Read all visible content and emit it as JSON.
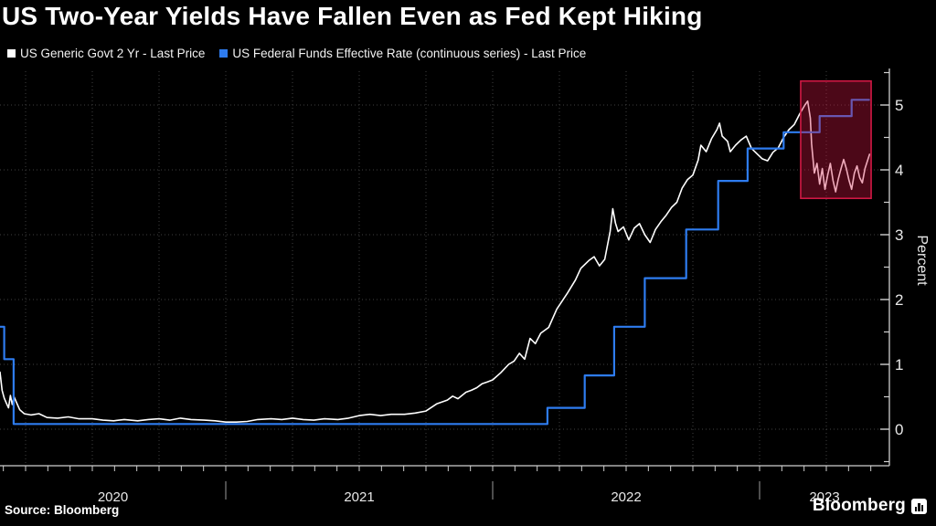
{
  "title": "US Two-Year Yields Have Fallen Even as Fed Kept Hiking",
  "legend": [
    {
      "label": "US Generic Govt 2 Yr - Last Price",
      "color": "#ffffff"
    },
    {
      "label": "US Federal Funds Effective Rate (continuous series) - Last Price",
      "color": "#2e7cf0"
    }
  ],
  "source_label": "Source: Bloomberg",
  "brand": {
    "name": "Bloomberg",
    "icon": "bloomberg-mark-icon"
  },
  "colors": {
    "background": "#000000",
    "grid": "#3f3f3f",
    "axis": "#cfcfcf",
    "tick_label": "#e8e8e8",
    "series_2yr": "#ffffff",
    "series_fedfunds": "#2e7cf0",
    "highlight_fill": "rgba(210,22,66,0.36)",
    "highlight_border": "#d01844"
  },
  "chart_data": {
    "type": "line",
    "x_unit": "decimal_year",
    "x_domain": [
      2020.154,
      2023.486
    ],
    "y_axis": {
      "label": "Percent",
      "side": "right",
      "ticks": [
        0,
        1,
        2,
        3,
        4,
        5
      ],
      "minor_step": 0.5,
      "range": [
        -0.56,
        5.56
      ]
    },
    "x_axis": {
      "year_labels": [
        "2020",
        "2021",
        "2022",
        "2023"
      ],
      "year_boundaries": [
        2020.154,
        2021,
        2022,
        2023,
        2023.486
      ],
      "minor_ticks": "monthly",
      "gridlines": "quarterly-dotted"
    },
    "grid": {
      "horizontal": [
        0,
        1,
        2,
        3,
        4,
        5
      ],
      "vertical_quarters_from": 2020.25,
      "vertical_quarters_to": 2023.25
    },
    "highlight_box": {
      "x1": 2023.154,
      "x2": 2023.418,
      "y1": 3.56,
      "y2": 5.37
    },
    "series": [
      {
        "name": "US Generic Govt 2 Yr - Last Price",
        "color": "#ffffff",
        "style": "line",
        "points": [
          [
            2020.154,
            0.88
          ],
          [
            2020.162,
            0.6
          ],
          [
            2020.17,
            0.48
          ],
          [
            2020.178,
            0.4
          ],
          [
            2020.186,
            0.33
          ],
          [
            2020.193,
            0.52
          ],
          [
            2020.2,
            0.38
          ],
          [
            2020.207,
            0.5
          ],
          [
            2020.215,
            0.42
          ],
          [
            2020.228,
            0.3
          ],
          [
            2020.245,
            0.24
          ],
          [
            2020.27,
            0.22
          ],
          [
            2020.3,
            0.24
          ],
          [
            2020.33,
            0.18
          ],
          [
            2020.37,
            0.17
          ],
          [
            2020.41,
            0.19
          ],
          [
            2020.45,
            0.16
          ],
          [
            2020.5,
            0.16
          ],
          [
            2020.54,
            0.14
          ],
          [
            2020.58,
            0.13
          ],
          [
            2020.62,
            0.15
          ],
          [
            2020.67,
            0.13
          ],
          [
            2020.71,
            0.15
          ],
          [
            2020.75,
            0.16
          ],
          [
            2020.79,
            0.14
          ],
          [
            2020.83,
            0.17
          ],
          [
            2020.87,
            0.15
          ],
          [
            2020.92,
            0.14
          ],
          [
            2020.96,
            0.13
          ],
          [
            2021.0,
            0.11
          ],
          [
            2021.04,
            0.11
          ],
          [
            2021.08,
            0.12
          ],
          [
            2021.12,
            0.15
          ],
          [
            2021.17,
            0.16
          ],
          [
            2021.21,
            0.15
          ],
          [
            2021.25,
            0.17
          ],
          [
            2021.29,
            0.15
          ],
          [
            2021.33,
            0.14
          ],
          [
            2021.37,
            0.16
          ],
          [
            2021.42,
            0.15
          ],
          [
            2021.46,
            0.17
          ],
          [
            2021.5,
            0.21
          ],
          [
            2021.54,
            0.23
          ],
          [
            2021.58,
            0.21
          ],
          [
            2021.62,
            0.23
          ],
          [
            2021.67,
            0.23
          ],
          [
            2021.71,
            0.25
          ],
          [
            2021.75,
            0.28
          ],
          [
            2021.79,
            0.39
          ],
          [
            2021.83,
            0.45
          ],
          [
            2021.85,
            0.51
          ],
          [
            2021.87,
            0.47
          ],
          [
            2021.9,
            0.57
          ],
          [
            2021.92,
            0.6
          ],
          [
            2021.94,
            0.64
          ],
          [
            2021.96,
            0.7
          ],
          [
            2021.98,
            0.73
          ],
          [
            2022.0,
            0.76
          ],
          [
            2022.03,
            0.87
          ],
          [
            2022.06,
            1.0
          ],
          [
            2022.08,
            1.05
          ],
          [
            2022.1,
            1.17
          ],
          [
            2022.12,
            1.08
          ],
          [
            2022.14,
            1.4
          ],
          [
            2022.16,
            1.32
          ],
          [
            2022.18,
            1.48
          ],
          [
            2022.21,
            1.57
          ],
          [
            2022.24,
            1.85
          ],
          [
            2022.28,
            2.1
          ],
          [
            2022.31,
            2.3
          ],
          [
            2022.33,
            2.48
          ],
          [
            2022.36,
            2.6
          ],
          [
            2022.38,
            2.66
          ],
          [
            2022.4,
            2.52
          ],
          [
            2022.42,
            2.62
          ],
          [
            2022.44,
            3.05
          ],
          [
            2022.45,
            3.4
          ],
          [
            2022.46,
            3.18
          ],
          [
            2022.47,
            3.05
          ],
          [
            2022.49,
            3.12
          ],
          [
            2022.51,
            2.92
          ],
          [
            2022.53,
            3.1
          ],
          [
            2022.55,
            3.17
          ],
          [
            2022.57,
            3.0
          ],
          [
            2022.59,
            2.88
          ],
          [
            2022.61,
            3.08
          ],
          [
            2022.63,
            3.2
          ],
          [
            2022.65,
            3.3
          ],
          [
            2022.67,
            3.42
          ],
          [
            2022.69,
            3.5
          ],
          [
            2022.71,
            3.72
          ],
          [
            2022.73,
            3.85
          ],
          [
            2022.75,
            3.92
          ],
          [
            2022.77,
            4.15
          ],
          [
            2022.78,
            4.38
          ],
          [
            2022.8,
            4.28
          ],
          [
            2022.82,
            4.48
          ],
          [
            2022.84,
            4.62
          ],
          [
            2022.85,
            4.72
          ],
          [
            2022.86,
            4.52
          ],
          [
            2022.88,
            4.44
          ],
          [
            2022.89,
            4.28
          ],
          [
            2022.91,
            4.38
          ],
          [
            2022.93,
            4.46
          ],
          [
            2022.95,
            4.52
          ],
          [
            2022.97,
            4.33
          ],
          [
            2022.99,
            4.25
          ],
          [
            2023.01,
            4.17
          ],
          [
            2023.03,
            4.14
          ],
          [
            2023.05,
            4.27
          ],
          [
            2023.07,
            4.34
          ],
          [
            2023.09,
            4.5
          ],
          [
            2023.11,
            4.62
          ],
          [
            2023.13,
            4.7
          ],
          [
            2023.15,
            4.86
          ],
          [
            2023.17,
            5.0
          ],
          [
            2023.18,
            5.06
          ],
          [
            2023.19,
            4.8
          ],
          [
            2023.195,
            4.4
          ],
          [
            2023.205,
            3.95
          ],
          [
            2023.215,
            4.1
          ],
          [
            2023.225,
            3.78
          ],
          [
            2023.235,
            4.02
          ],
          [
            2023.245,
            3.7
          ],
          [
            2023.255,
            3.92
          ],
          [
            2023.265,
            4.1
          ],
          [
            2023.275,
            3.84
          ],
          [
            2023.285,
            3.66
          ],
          [
            2023.295,
            3.86
          ],
          [
            2023.305,
            4.02
          ],
          [
            2023.315,
            4.16
          ],
          [
            2023.325,
            4.02
          ],
          [
            2023.335,
            3.84
          ],
          [
            2023.345,
            3.7
          ],
          [
            2023.355,
            3.95
          ],
          [
            2023.365,
            4.06
          ],
          [
            2023.375,
            3.88
          ],
          [
            2023.385,
            3.8
          ],
          [
            2023.395,
            4.02
          ],
          [
            2023.405,
            4.15
          ],
          [
            2023.412,
            4.24
          ]
        ]
      },
      {
        "name": "US Federal Funds Effective Rate (continuous series) - Last Price",
        "color": "#2e7cf0",
        "style": "step-after",
        "end_x": 2023.41,
        "points": [
          [
            2020.154,
            1.58
          ],
          [
            2020.17,
            1.08
          ],
          [
            2020.205,
            0.08
          ],
          [
            2022.205,
            0.33
          ],
          [
            2022.345,
            0.83
          ],
          [
            2022.455,
            1.58
          ],
          [
            2022.57,
            2.33
          ],
          [
            2022.725,
            3.08
          ],
          [
            2022.845,
            3.83
          ],
          [
            2022.955,
            4.33
          ],
          [
            2023.09,
            4.58
          ],
          [
            2023.225,
            4.83
          ],
          [
            2023.345,
            5.08
          ]
        ]
      }
    ]
  }
}
